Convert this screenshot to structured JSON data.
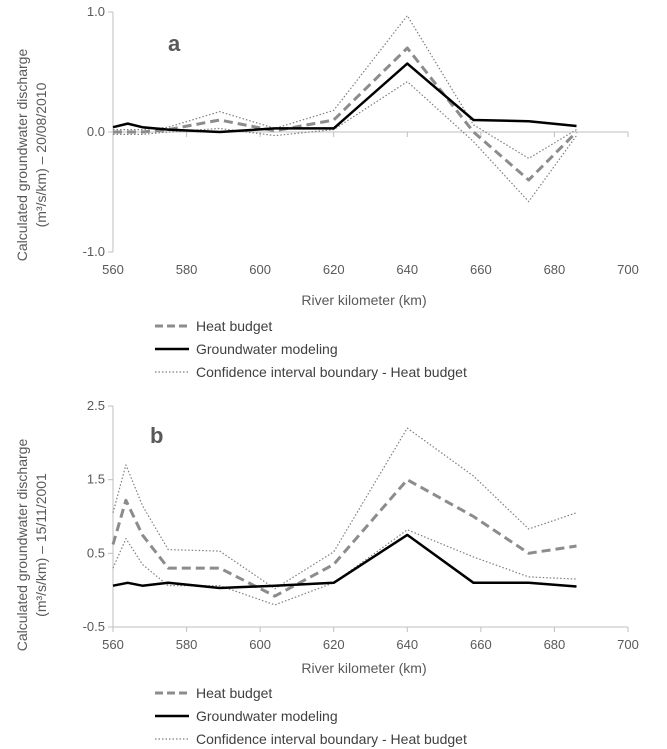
{
  "colors": {
    "heat_budget": "#8c8c8c",
    "groundwater": "#000000",
    "confidence": "#7f7f7f",
    "axis": "#bfbfbf",
    "text": "#595959"
  },
  "legend": {
    "heat_budget": "Heat budget",
    "groundwater": "Groundwater modeling",
    "confidence": "Confidence interval boundary - Heat budget"
  },
  "chart_data": [
    {
      "type": "line",
      "panel": "a",
      "xlabel": "River kilometer (km)",
      "ylabel_line1": "Calculated groundwater discharge",
      "ylabel_line2": "(m³/s/km) – 20/08/2010",
      "xlim": [
        560,
        700
      ],
      "ylim": [
        -1.0,
        1.0
      ],
      "xticks": [
        560,
        580,
        600,
        620,
        640,
        660,
        680,
        700
      ],
      "yticks": [
        -1.0,
        0.0,
        1.0
      ],
      "ytick_labels": [
        "-1.0",
        "0.0",
        "1.0"
      ],
      "legend_position": "bottom",
      "series": [
        {
          "name": "Heat budget",
          "style": "dashed",
          "x": [
            560,
            563,
            568,
            575,
            589,
            604,
            620,
            640,
            658,
            673,
            686
          ],
          "y": [
            0.0,
            0.0,
            0.0,
            0.02,
            0.1,
            0.01,
            0.1,
            0.7,
            0.0,
            -0.4,
            0.0
          ]
        },
        {
          "name": "Groundwater modeling",
          "style": "solid",
          "x": [
            560,
            564,
            568,
            575,
            589,
            604,
            620,
            640,
            658,
            673,
            686
          ],
          "y": [
            0.04,
            0.07,
            0.04,
            0.02,
            0.0,
            0.03,
            0.03,
            0.57,
            0.1,
            0.09,
            0.05
          ]
        },
        {
          "name": "Confidence interval boundary - Heat budget",
          "style": "dotted",
          "x": [
            560,
            563,
            568,
            575,
            589,
            604,
            620,
            640,
            658,
            673,
            686
          ],
          "y": [
            0.02,
            0.02,
            0.02,
            0.04,
            0.17,
            0.03,
            0.18,
            0.97,
            0.06,
            -0.22,
            0.02
          ]
        },
        {
          "name": "",
          "style": "dotted",
          "x": [
            560,
            563,
            568,
            575,
            589,
            604,
            620,
            640,
            658,
            673,
            686
          ],
          "y": [
            -0.02,
            -0.02,
            -0.02,
            0.0,
            0.03,
            -0.03,
            0.02,
            0.42,
            -0.08,
            -0.58,
            -0.03
          ]
        }
      ]
    },
    {
      "type": "line",
      "panel": "b",
      "xlabel": "River kilometer (km)",
      "ylabel_line1": "Calculated groundwater discharge",
      "ylabel_line2": "(m³/s/km) – 15/11/2001",
      "xlim": [
        560,
        700
      ],
      "ylim": [
        -0.5,
        2.5
      ],
      "xticks": [
        560,
        580,
        600,
        620,
        640,
        660,
        680,
        700
      ],
      "yticks": [
        -0.5,
        0.5,
        1.5,
        2.5
      ],
      "ytick_labels": [
        "-0.5",
        "0.5",
        "1.5",
        "2.5"
      ],
      "legend_position": "bottom",
      "series": [
        {
          "name": "Heat budget",
          "style": "dashed",
          "x": [
            560,
            563.5,
            568,
            575,
            589,
            604,
            620,
            640,
            658,
            673,
            686
          ],
          "y": [
            0.62,
            1.22,
            0.75,
            0.3,
            0.3,
            -0.08,
            0.35,
            1.5,
            1.0,
            0.5,
            0.6
          ]
        },
        {
          "name": "Groundwater modeling",
          "style": "solid",
          "x": [
            560,
            564,
            568,
            575,
            589,
            604,
            620,
            640,
            658,
            673,
            686
          ],
          "y": [
            0.06,
            0.1,
            0.06,
            0.1,
            0.03,
            0.06,
            0.1,
            0.75,
            0.1,
            0.1,
            0.05
          ]
        },
        {
          "name": "Confidence interval boundary - Heat budget",
          "style": "dotted",
          "x": [
            560,
            563.5,
            568,
            575,
            589,
            604,
            620,
            640,
            658,
            673,
            686
          ],
          "y": [
            1.05,
            1.7,
            1.15,
            0.55,
            0.53,
            0.02,
            0.52,
            2.2,
            1.55,
            0.83,
            1.05
          ]
        },
        {
          "name": "",
          "style": "dotted",
          "x": [
            560,
            563.5,
            568,
            575,
            589,
            604,
            620,
            640,
            658,
            673,
            686
          ],
          "y": [
            0.3,
            0.7,
            0.35,
            0.06,
            0.06,
            -0.2,
            0.1,
            0.82,
            0.45,
            0.18,
            0.15
          ]
        }
      ]
    }
  ]
}
